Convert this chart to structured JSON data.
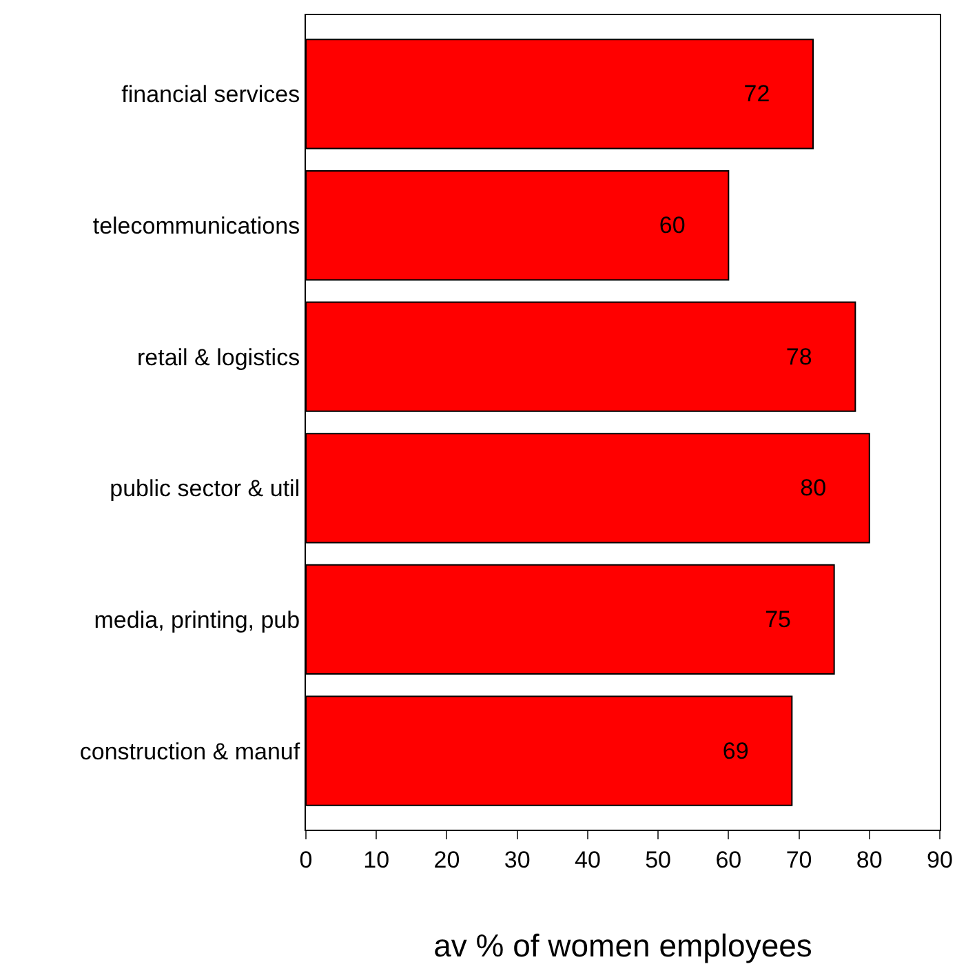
{
  "chart_data": {
    "type": "bar",
    "orientation": "horizontal",
    "xlabel": "av % of women employees",
    "categories": [
      "financial services",
      "telecommunications",
      "retail & logistics",
      "public sector & util",
      "media, printing, pub",
      "construction & manuf"
    ],
    "values": [
      72,
      60,
      78,
      80,
      75,
      69
    ],
    "color": "#ff0000",
    "data_labels": true,
    "xlim": [
      0,
      90
    ],
    "xticks": [
      0,
      10,
      20,
      30,
      40,
      50,
      60,
      70,
      80,
      90
    ]
  }
}
